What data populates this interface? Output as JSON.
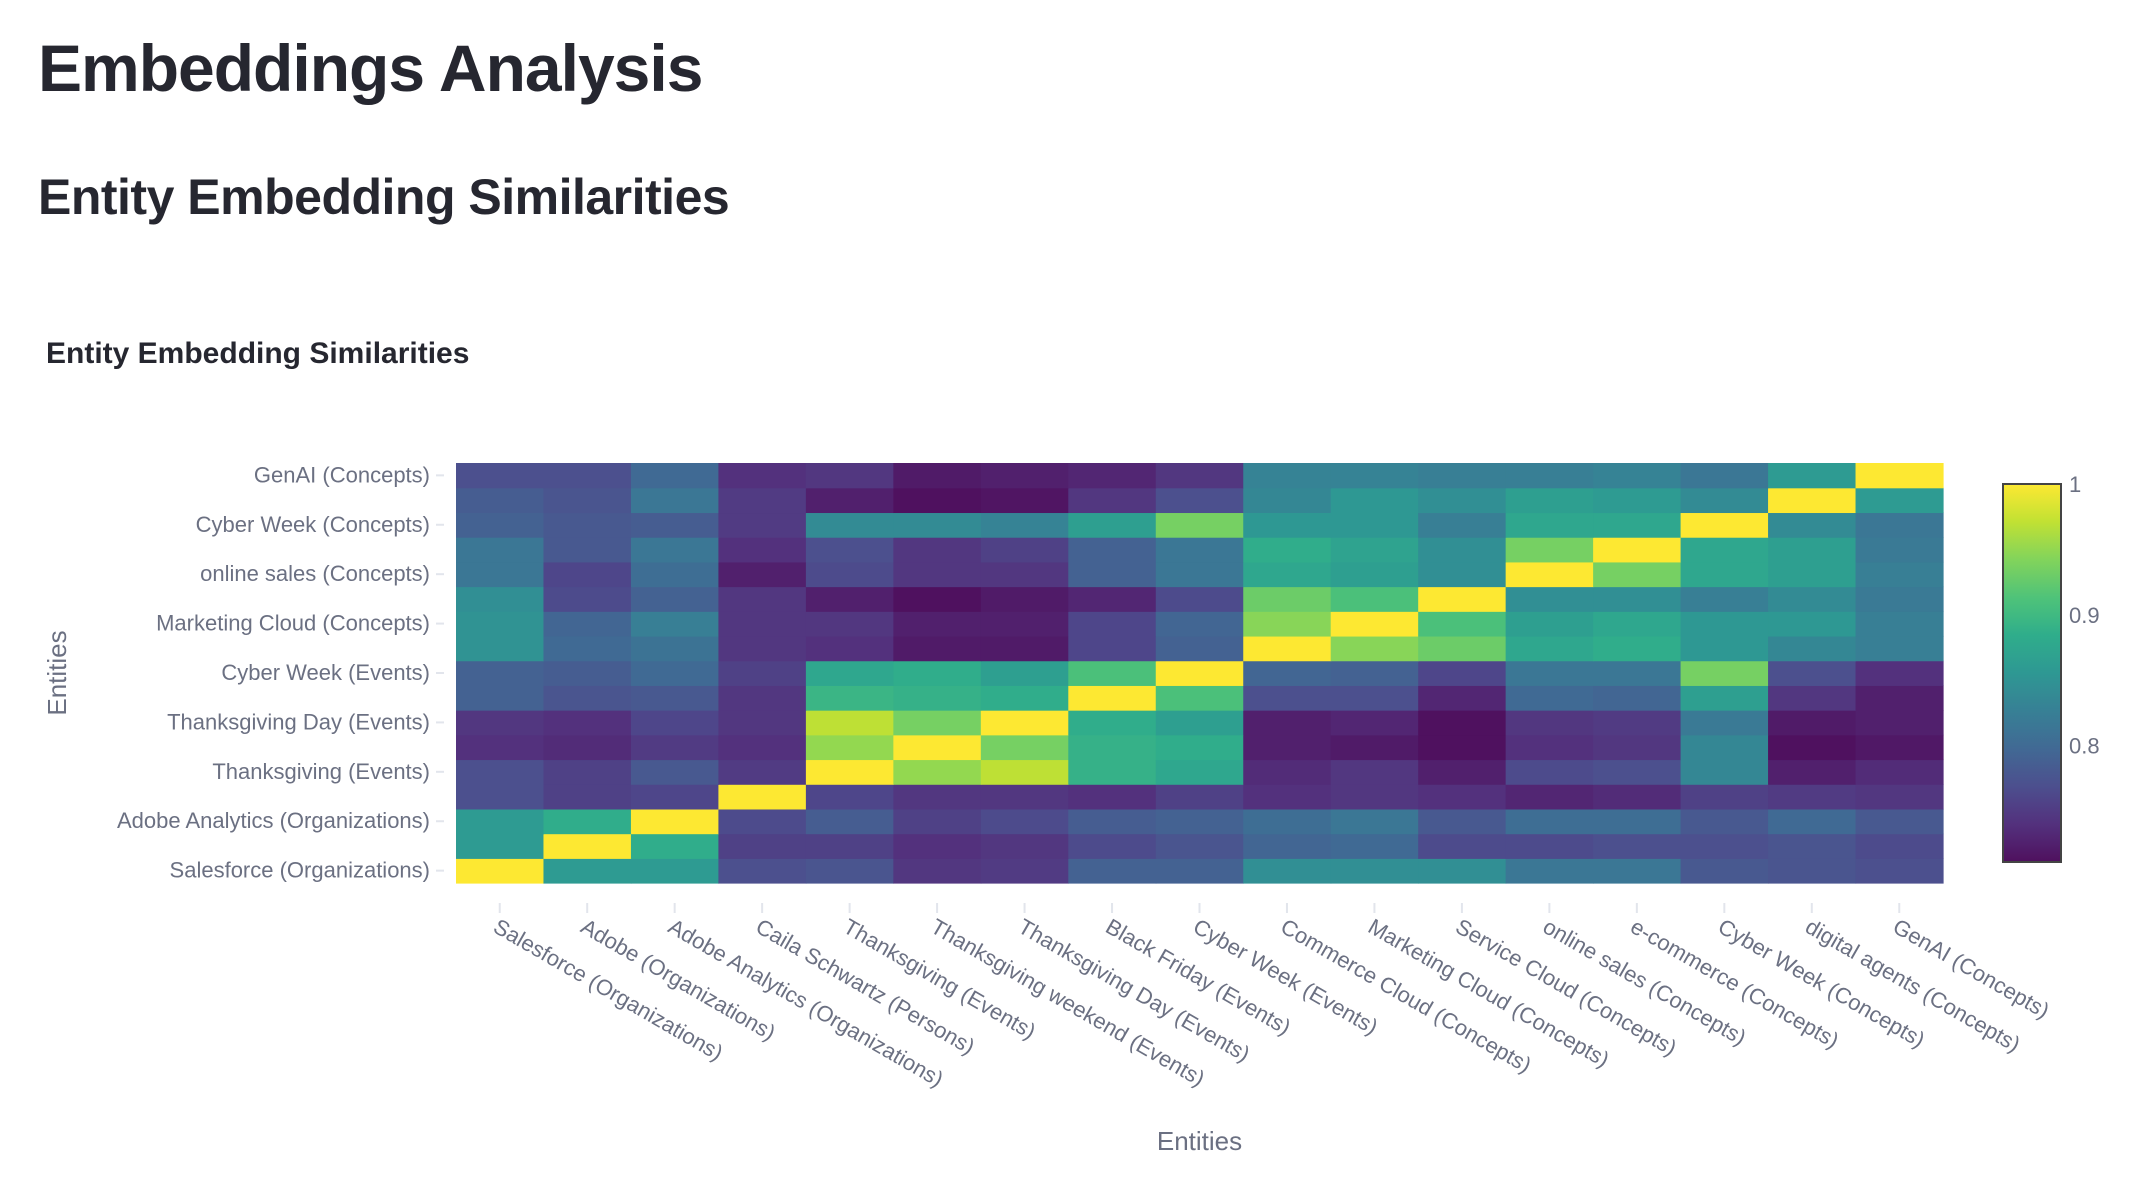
{
  "page": {
    "title": "Embeddings Analysis",
    "subtitle": "Entity Embedding Similarities"
  },
  "chart_data": {
    "type": "heatmap",
    "title": "Entity Embedding Similarities",
    "xlabel": "Entities",
    "ylabel": "Entities",
    "colorscale": "Viridis",
    "zrange": [
      0.711,
      1.0
    ],
    "colorbar_ticks": [
      "0.8",
      "0.9",
      "1"
    ],
    "colorbar_tick_values": [
      0.8,
      0.9,
      1.0
    ],
    "entities": [
      "Salesforce (Organizations)",
      "Adobe (Organizations)",
      "Adobe Analytics (Organizations)",
      "Caila Schwartz (Persons)",
      "Thanksgiving (Events)",
      "Thanksgiving weekend (Events)",
      "Thanksgiving Day (Events)",
      "Black Friday (Events)",
      "Cyber Week (Events)",
      "Commerce Cloud (Concepts)",
      "Marketing Cloud (Concepts)",
      "Service Cloud (Concepts)",
      "online sales (Concepts)",
      "e-commerce (Concepts)",
      "Cyber Week (Concepts)",
      "digital agents (Concepts)",
      "GenAI (Concepts)"
    ],
    "y_tick_labels_shown": [
      "Salesforce (Organizations)",
      "Adobe Analytics (Organizations)",
      "Thanksgiving (Events)",
      "Thanksgiving Day (Events)",
      "Cyber Week (Events)",
      "Marketing Cloud (Concepts)",
      "online sales (Concepts)",
      "Cyber Week (Concepts)",
      "GenAI (Concepts)"
    ],
    "y_tick_indices_shown": [
      0,
      2,
      4,
      6,
      8,
      10,
      12,
      14,
      16
    ],
    "z": [
      [
        1.0,
        0.86,
        0.86,
        0.77,
        0.775,
        0.745,
        0.75,
        0.79,
        0.79,
        0.845,
        0.845,
        0.845,
        0.815,
        0.815,
        0.78,
        0.775,
        0.77
      ],
      [
        0.86,
        1.0,
        0.885,
        0.755,
        0.755,
        0.74,
        0.745,
        0.765,
        0.775,
        0.795,
        0.8,
        0.765,
        0.765,
        0.77,
        0.77,
        0.775,
        0.765
      ],
      [
        0.86,
        0.885,
        1.0,
        0.765,
        0.785,
        0.755,
        0.765,
        0.785,
        0.79,
        0.805,
        0.815,
        0.78,
        0.805,
        0.805,
        0.78,
        0.8,
        0.78
      ],
      [
        0.77,
        0.755,
        0.76,
        1.0,
        0.76,
        0.745,
        0.745,
        0.74,
        0.755,
        0.74,
        0.745,
        0.74,
        0.73,
        0.735,
        0.755,
        0.75,
        0.745
      ],
      [
        0.77,
        0.755,
        0.78,
        0.75,
        1.0,
        0.95,
        0.97,
        0.89,
        0.875,
        0.735,
        0.745,
        0.725,
        0.765,
        0.77,
        0.835,
        0.725,
        0.735
      ],
      [
        0.74,
        0.735,
        0.75,
        0.74,
        0.95,
        1.0,
        0.935,
        0.89,
        0.885,
        0.725,
        0.72,
        0.712,
        0.74,
        0.745,
        0.835,
        0.712,
        0.718
      ],
      [
        0.745,
        0.74,
        0.76,
        0.745,
        0.97,
        0.935,
        1.0,
        0.885,
        0.865,
        0.725,
        0.73,
        0.712,
        0.745,
        0.75,
        0.82,
        0.72,
        0.725
      ],
      [
        0.79,
        0.775,
        0.78,
        0.745,
        0.895,
        0.89,
        0.885,
        1.0,
        0.91,
        0.77,
        0.77,
        0.73,
        0.8,
        0.795,
        0.865,
        0.745,
        0.725
      ],
      [
        0.79,
        0.785,
        0.8,
        0.755,
        0.875,
        0.885,
        0.865,
        0.91,
        1.0,
        0.795,
        0.79,
        0.76,
        0.815,
        0.815,
        0.935,
        0.77,
        0.74
      ],
      [
        0.85,
        0.8,
        0.81,
        0.745,
        0.74,
        0.72,
        0.72,
        0.76,
        0.79,
        1.0,
        0.945,
        0.93,
        0.875,
        0.885,
        0.855,
        0.835,
        0.825
      ],
      [
        0.85,
        0.795,
        0.825,
        0.745,
        0.745,
        0.725,
        0.725,
        0.76,
        0.795,
        0.945,
        1.0,
        0.91,
        0.865,
        0.875,
        0.855,
        0.855,
        0.825
      ],
      [
        0.845,
        0.765,
        0.79,
        0.745,
        0.725,
        0.712,
        0.72,
        0.73,
        0.765,
        0.93,
        0.91,
        1.0,
        0.845,
        0.845,
        0.825,
        0.84,
        0.82
      ],
      [
        0.815,
        0.76,
        0.805,
        0.725,
        0.765,
        0.745,
        0.745,
        0.79,
        0.815,
        0.875,
        0.865,
        0.845,
        1.0,
        0.935,
        0.875,
        0.865,
        0.825
      ],
      [
        0.815,
        0.78,
        0.815,
        0.74,
        0.77,
        0.745,
        0.755,
        0.79,
        0.815,
        0.885,
        0.87,
        0.845,
        0.935,
        1.0,
        0.875,
        0.865,
        0.82
      ],
      [
        0.79,
        0.78,
        0.785,
        0.75,
        0.84,
        0.84,
        0.83,
        0.865,
        0.935,
        0.855,
        0.855,
        0.825,
        0.875,
        0.875,
        1.0,
        0.84,
        0.815
      ],
      [
        0.785,
        0.775,
        0.815,
        0.75,
        0.725,
        0.712,
        0.715,
        0.745,
        0.77,
        0.835,
        0.855,
        0.845,
        0.865,
        0.86,
        0.84,
        1.0,
        0.86
      ],
      [
        0.77,
        0.77,
        0.8,
        0.74,
        0.745,
        0.72,
        0.725,
        0.73,
        0.745,
        0.83,
        0.83,
        0.825,
        0.825,
        0.83,
        0.815,
        0.86,
        1.0
      ]
    ]
  }
}
